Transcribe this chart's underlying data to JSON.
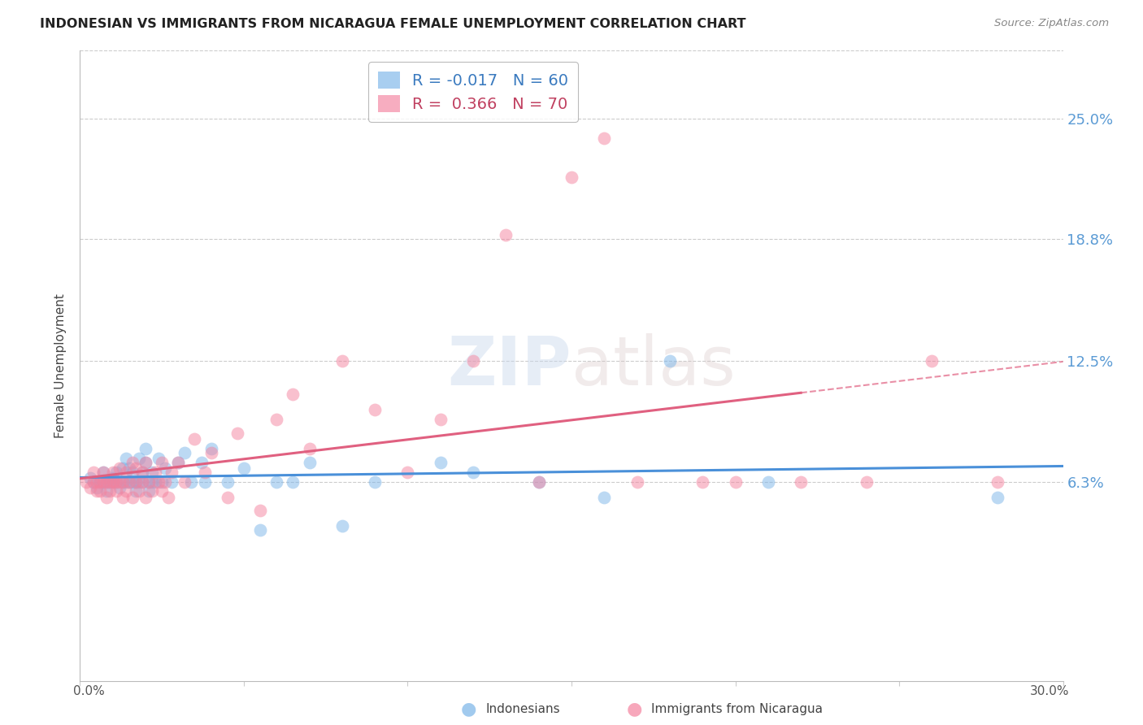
{
  "title": "INDONESIAN VS IMMIGRANTS FROM NICARAGUA FEMALE UNEMPLOYMENT CORRELATION CHART",
  "source": "Source: ZipAtlas.com",
  "ylabel": "Female Unemployment",
  "ytick_labels": [
    "25.0%",
    "18.8%",
    "12.5%",
    "6.3%"
  ],
  "ytick_values": [
    0.25,
    0.188,
    0.125,
    0.063
  ],
  "xlim": [
    0.0,
    0.3
  ],
  "ylim": [
    -0.04,
    0.285
  ],
  "indonesian_color": "#7ab4e8",
  "nicaraguan_color": "#f4829e",
  "watermark": "ZIPatlas",
  "indo_legend": "R = -0.017   N = 60",
  "nica_legend": "R =  0.366   N = 70",
  "legend_labels": [
    "Indonesians",
    "Immigrants from Nicaragua"
  ],
  "indonesian_points": [
    [
      0.003,
      0.065
    ],
    [
      0.004,
      0.063
    ],
    [
      0.005,
      0.06
    ],
    [
      0.006,
      0.063
    ],
    [
      0.007,
      0.063
    ],
    [
      0.007,
      0.068
    ],
    [
      0.008,
      0.058
    ],
    [
      0.008,
      0.063
    ],
    [
      0.009,
      0.063
    ],
    [
      0.01,
      0.065
    ],
    [
      0.01,
      0.063
    ],
    [
      0.011,
      0.068
    ],
    [
      0.011,
      0.063
    ],
    [
      0.012,
      0.06
    ],
    [
      0.013,
      0.063
    ],
    [
      0.013,
      0.07
    ],
    [
      0.014,
      0.075
    ],
    [
      0.014,
      0.063
    ],
    [
      0.015,
      0.07
    ],
    [
      0.015,
      0.063
    ],
    [
      0.016,
      0.068
    ],
    [
      0.016,
      0.063
    ],
    [
      0.017,
      0.063
    ],
    [
      0.017,
      0.058
    ],
    [
      0.018,
      0.075
    ],
    [
      0.018,
      0.063
    ],
    [
      0.019,
      0.068
    ],
    [
      0.019,
      0.063
    ],
    [
      0.02,
      0.08
    ],
    [
      0.02,
      0.073
    ],
    [
      0.021,
      0.063
    ],
    [
      0.021,
      0.058
    ],
    [
      0.022,
      0.063
    ],
    [
      0.022,
      0.068
    ],
    [
      0.023,
      0.063
    ],
    [
      0.024,
      0.075
    ],
    [
      0.025,
      0.063
    ],
    [
      0.026,
      0.07
    ],
    [
      0.028,
      0.063
    ],
    [
      0.03,
      0.073
    ],
    [
      0.032,
      0.078
    ],
    [
      0.034,
      0.063
    ],
    [
      0.037,
      0.073
    ],
    [
      0.038,
      0.063
    ],
    [
      0.04,
      0.08
    ],
    [
      0.045,
      0.063
    ],
    [
      0.05,
      0.07
    ],
    [
      0.055,
      0.038
    ],
    [
      0.06,
      0.063
    ],
    [
      0.065,
      0.063
    ],
    [
      0.07,
      0.073
    ],
    [
      0.08,
      0.04
    ],
    [
      0.09,
      0.063
    ],
    [
      0.11,
      0.073
    ],
    [
      0.12,
      0.068
    ],
    [
      0.14,
      0.063
    ],
    [
      0.16,
      0.055
    ],
    [
      0.18,
      0.125
    ],
    [
      0.21,
      0.063
    ],
    [
      0.28,
      0.055
    ]
  ],
  "nicaraguan_points": [
    [
      0.002,
      0.063
    ],
    [
      0.003,
      0.06
    ],
    [
      0.004,
      0.063
    ],
    [
      0.004,
      0.068
    ],
    [
      0.005,
      0.058
    ],
    [
      0.005,
      0.063
    ],
    [
      0.006,
      0.063
    ],
    [
      0.006,
      0.058
    ],
    [
      0.007,
      0.063
    ],
    [
      0.007,
      0.068
    ],
    [
      0.008,
      0.055
    ],
    [
      0.008,
      0.063
    ],
    [
      0.009,
      0.058
    ],
    [
      0.009,
      0.063
    ],
    [
      0.01,
      0.068
    ],
    [
      0.01,
      0.063
    ],
    [
      0.011,
      0.058
    ],
    [
      0.011,
      0.063
    ],
    [
      0.012,
      0.063
    ],
    [
      0.012,
      0.07
    ],
    [
      0.013,
      0.055
    ],
    [
      0.013,
      0.063
    ],
    [
      0.014,
      0.058
    ],
    [
      0.014,
      0.068
    ],
    [
      0.015,
      0.063
    ],
    [
      0.016,
      0.073
    ],
    [
      0.016,
      0.055
    ],
    [
      0.017,
      0.063
    ],
    [
      0.017,
      0.07
    ],
    [
      0.018,
      0.058
    ],
    [
      0.019,
      0.063
    ],
    [
      0.019,
      0.068
    ],
    [
      0.02,
      0.055
    ],
    [
      0.02,
      0.073
    ],
    [
      0.021,
      0.063
    ],
    [
      0.022,
      0.058
    ],
    [
      0.023,
      0.068
    ],
    [
      0.024,
      0.063
    ],
    [
      0.025,
      0.058
    ],
    [
      0.025,
      0.073
    ],
    [
      0.026,
      0.063
    ],
    [
      0.027,
      0.055
    ],
    [
      0.028,
      0.068
    ],
    [
      0.03,
      0.073
    ],
    [
      0.032,
      0.063
    ],
    [
      0.035,
      0.085
    ],
    [
      0.038,
      0.068
    ],
    [
      0.04,
      0.078
    ],
    [
      0.045,
      0.055
    ],
    [
      0.048,
      0.088
    ],
    [
      0.055,
      0.048
    ],
    [
      0.06,
      0.095
    ],
    [
      0.065,
      0.108
    ],
    [
      0.07,
      0.08
    ],
    [
      0.08,
      0.125
    ],
    [
      0.09,
      0.1
    ],
    [
      0.1,
      0.068
    ],
    [
      0.11,
      0.095
    ],
    [
      0.12,
      0.125
    ],
    [
      0.13,
      0.19
    ],
    [
      0.14,
      0.063
    ],
    [
      0.15,
      0.22
    ],
    [
      0.16,
      0.24
    ],
    [
      0.17,
      0.063
    ],
    [
      0.19,
      0.063
    ],
    [
      0.2,
      0.063
    ],
    [
      0.22,
      0.063
    ],
    [
      0.24,
      0.063
    ],
    [
      0.26,
      0.125
    ],
    [
      0.28,
      0.063
    ]
  ]
}
